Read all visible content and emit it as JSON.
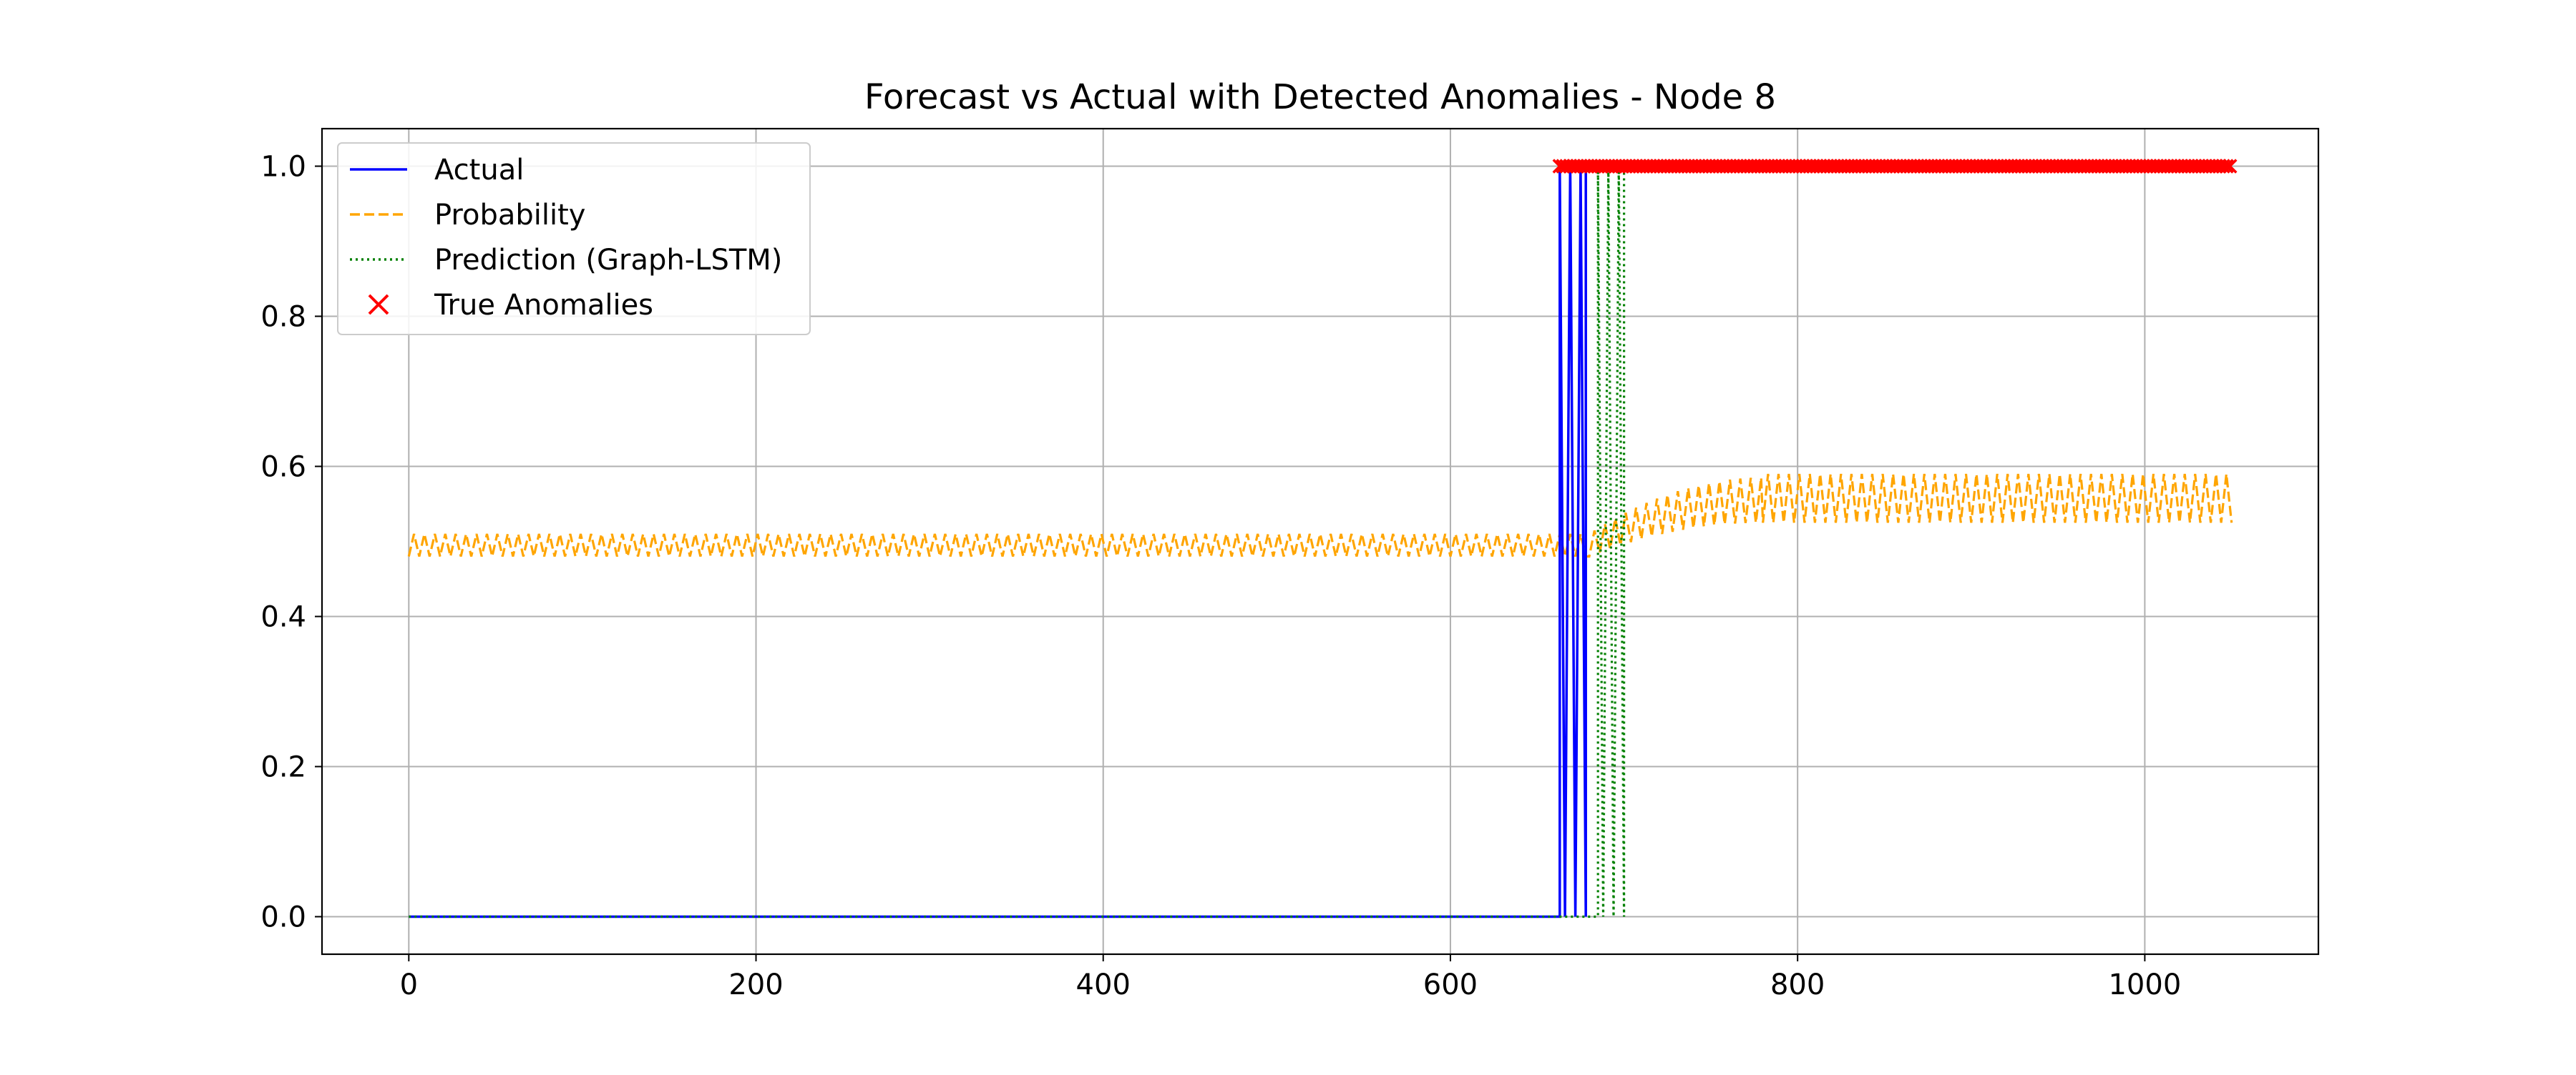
{
  "chart_data": {
    "type": "line",
    "title": "Forecast vs Actual with Detected Anomalies - Node 8",
    "xlabel": "",
    "ylabel": "",
    "xlim": [
      -50,
      1100
    ],
    "ylim": [
      -0.05,
      1.05
    ],
    "x_ticks": [
      0,
      200,
      400,
      600,
      800,
      1000
    ],
    "x_tick_labels": [
      "0",
      "200",
      "400",
      "600",
      "800",
      "1000"
    ],
    "y_ticks": [
      0.0,
      0.2,
      0.4,
      0.6,
      0.8,
      1.0
    ],
    "y_tick_labels": [
      "0.0",
      "0.2",
      "0.4",
      "0.6",
      "0.8",
      "1.0"
    ],
    "grid": true,
    "legend_position": "top-left",
    "series": [
      {
        "name": "Actual",
        "kind": "step-line",
        "color": "#0000ff",
        "style": "solid",
        "x_range": [
          0,
          1050
        ],
        "segments": [
          {
            "x": [
              0,
              663
            ],
            "value": 0
          },
          {
            "x": [
              663,
              678
            ],
            "value": "alternating 0/1"
          },
          {
            "x": [
              678,
              1050
            ],
            "value": 1
          }
        ]
      },
      {
        "name": "Probability",
        "kind": "oscillating-line",
        "color": "#ffa500",
        "style": "dashed",
        "x_range": [
          0,
          1050
        ],
        "segments": [
          {
            "x": [
              0,
              680
            ],
            "low": 0.48,
            "high": 0.51
          },
          {
            "x": [
              680,
              780
            ],
            "low_start": 0.48,
            "high_start": 0.51,
            "low_end": 0.525,
            "high_end": 0.585
          },
          {
            "x": [
              780,
              1050
            ],
            "low": 0.525,
            "high": 0.59
          }
        ]
      },
      {
        "name": "Prediction (Graph-LSTM)",
        "kind": "step-line",
        "color": "#008000",
        "style": "dotted",
        "x_range": [
          0,
          1050
        ],
        "segments": [
          {
            "x": [
              0,
              685
            ],
            "value": 0
          },
          {
            "x": [
              685,
              700
            ],
            "value": "alternating 0/1"
          },
          {
            "x": [
              700,
              1050
            ],
            "value": 1
          }
        ]
      },
      {
        "name": "True Anomalies",
        "kind": "scatter",
        "marker": "x",
        "color": "#ff0000",
        "x_range": [
          663,
          1050
        ],
        "y": 1.0
      }
    ]
  }
}
